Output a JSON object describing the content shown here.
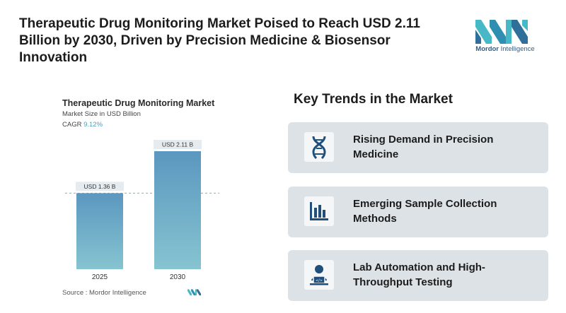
{
  "header": {
    "title": "Therapeutic Drug Monitoring Market Poised to Reach USD 2.11 Billion by 2030, Driven by Precision Medicine & Biosensor Innovation",
    "logo_brand": "Mordor",
    "logo_brand_rest": " Intelligence"
  },
  "chart_data": {
    "type": "bar",
    "title": "Therapeutic Drug Monitoring Market",
    "subtitle": "Market Size in USD Billion",
    "cagr_label": "CAGR",
    "cagr_value": "9.12%",
    "categories": [
      "2025",
      "2030"
    ],
    "values": [
      1.36,
      2.11
    ],
    "value_labels": [
      "USD 1.36 B",
      "USD 2.11 B"
    ],
    "ylim": [
      0,
      2.11
    ],
    "grid": false,
    "reference_line": "dashed line at 2025 value",
    "colors": {
      "bar_top": "#5b97bf",
      "bar_bottom": "#86c4d1",
      "label_bg": "#e6ebef",
      "dash": "#7fb3c7"
    }
  },
  "source": "Source : Mordor Intelligence",
  "trends": {
    "title": "Key Trends in the Market",
    "items": [
      {
        "label": "Rising Demand in Precision Medicine",
        "icon": "dna-icon"
      },
      {
        "label": "Emerging Sample Collection Methods",
        "icon": "bar-chart-icon"
      },
      {
        "label": "Lab Automation and High-Throughput Testing",
        "icon": "person-laptop-icon"
      }
    ]
  },
  "colors": {
    "icon_dark": "#1f4f7a",
    "card_bg": "#dde2e7",
    "logo_teal": "#47b8c6",
    "logo_blue": "#2f6f9a"
  }
}
